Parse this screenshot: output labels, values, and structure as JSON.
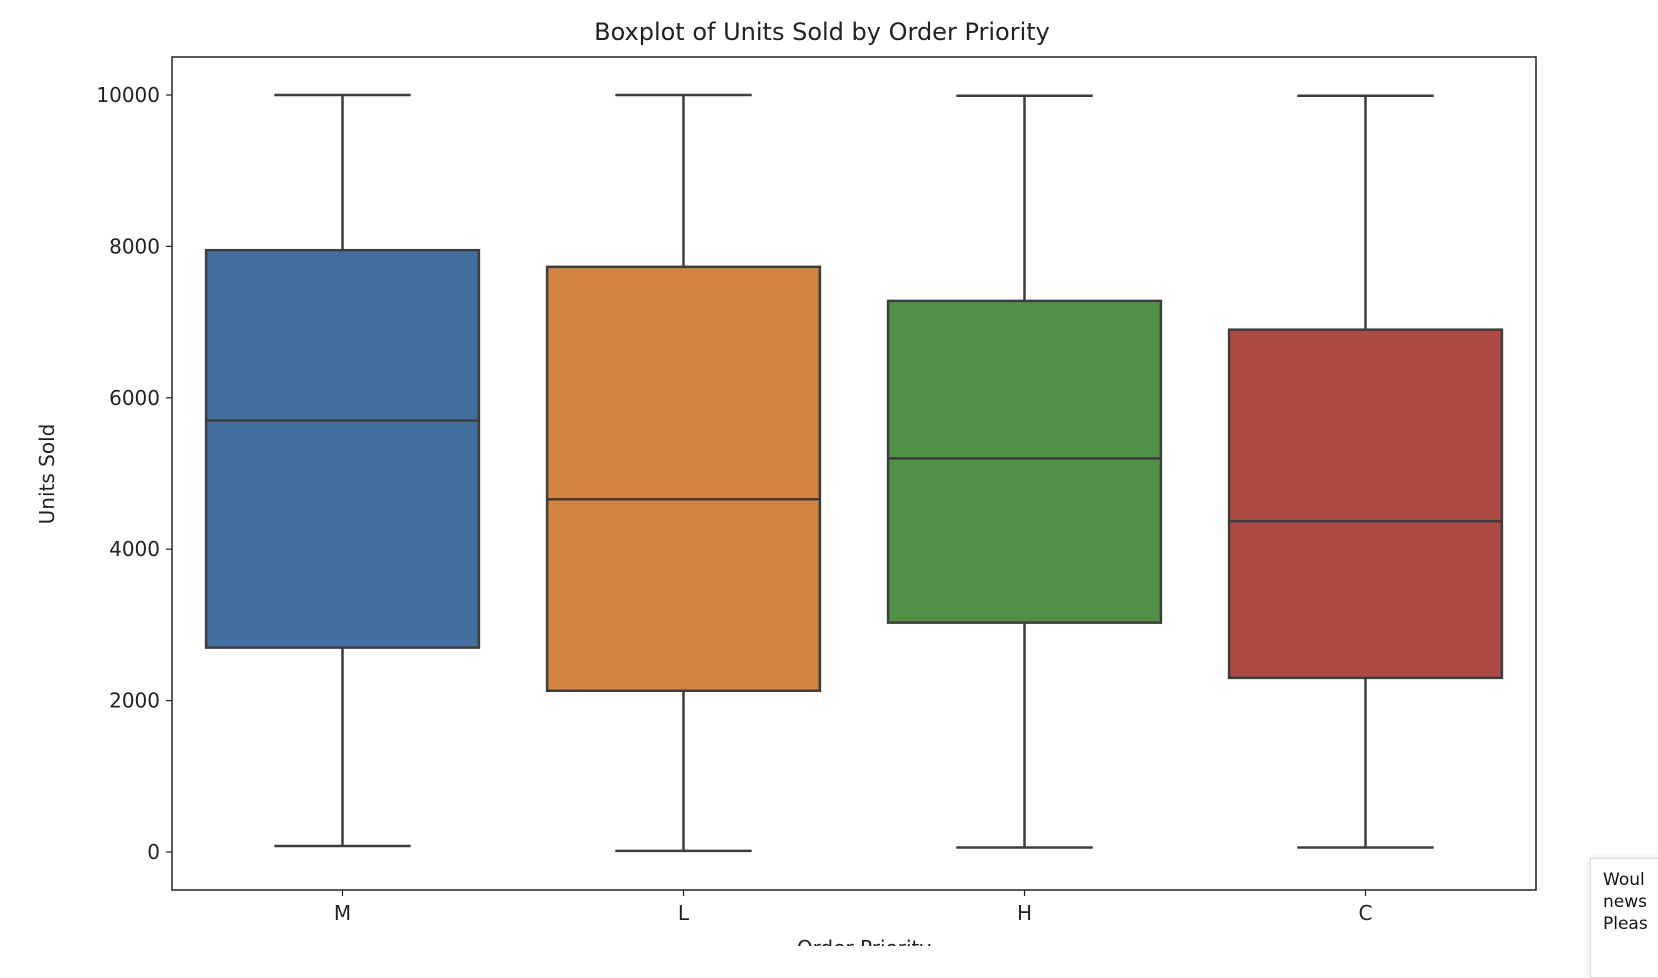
{
  "chart_data": {
    "type": "boxplot",
    "title": "Boxplot of Units Sold by Order Priority",
    "xlabel": "Order Priority",
    "ylabel": "Units Sold",
    "ylim": [
      -500,
      10500
    ],
    "yticks": [
      0,
      2000,
      4000,
      6000,
      8000,
      10000
    ],
    "grid": false,
    "categories": [
      "M",
      "L",
      "H",
      "C"
    ],
    "boxes": [
      {
        "category": "M",
        "whisker_low": 80,
        "q1": 2700,
        "median": 5700,
        "q3": 7950,
        "whisker_high": 10000,
        "color": "#4170a0"
      },
      {
        "category": "L",
        "whisker_low": 15,
        "q1": 2130,
        "median": 4660,
        "q3": 7730,
        "whisker_high": 10000,
        "color": "#d48441"
      },
      {
        "category": "H",
        "whisker_low": 60,
        "q1": 3030,
        "median": 5200,
        "q3": 7280,
        "whisker_high": 9990,
        "color": "#529145"
      },
      {
        "category": "C",
        "whisker_low": 60,
        "q1": 2300,
        "median": 4370,
        "q3": 6900,
        "whisker_high": 9990,
        "color": "#b04a45"
      }
    ],
    "edge_color": "#3d3d3d"
  },
  "toast": {
    "line1": "Woul",
    "line2": "news",
    "line3": "Pleas"
  }
}
